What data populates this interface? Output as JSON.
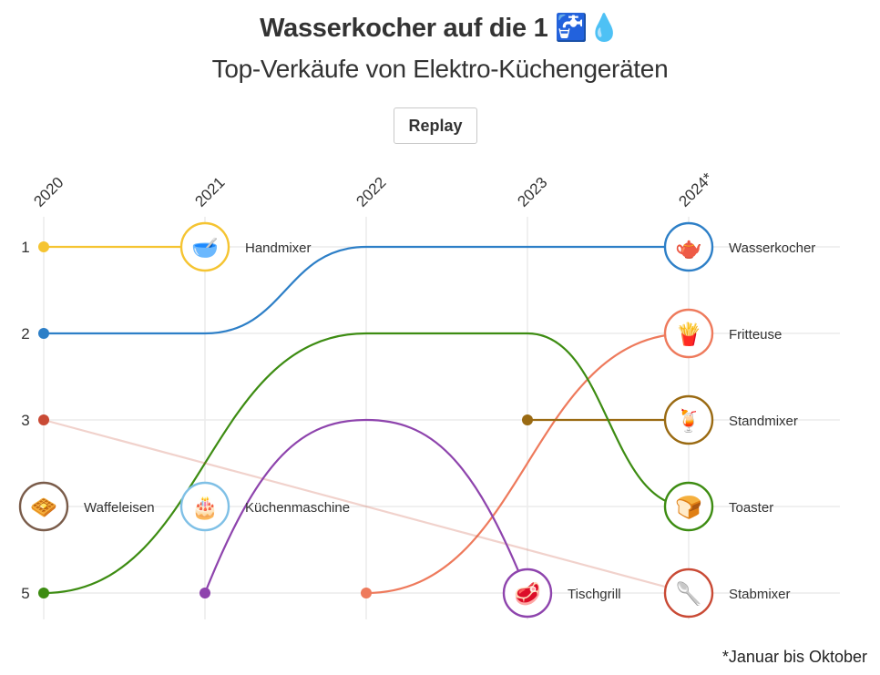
{
  "title": "Wasserkocher auf die 1 🚰💧",
  "subtitle": "Top-Verkäufe von Elektro-Küchengeräten",
  "replay_label": "Replay",
  "footnote": "*Januar bis Oktober",
  "chart_data": {
    "type": "bump",
    "title": "Wasserkocher auf die 1 🚰💧",
    "subtitle": "Top-Verkäufe von Elektro-Küchengeräten",
    "x": [
      "2020",
      "2021",
      "2022",
      "2023",
      "2024*"
    ],
    "y_ticks": [
      "1",
      "2",
      "3",
      "5"
    ],
    "ylim": [
      1,
      5
    ],
    "grid": true,
    "series": [
      {
        "name": "Handmixer",
        "color": "#f5c431",
        "icon": "hand-mixer-icon",
        "ranks": [
          1,
          1,
          null,
          null,
          null
        ]
      },
      {
        "name": "Wasserkocher",
        "color": "#2d7fc7",
        "icon": "kettle-icon",
        "ranks": [
          2,
          2,
          1,
          1,
          1
        ]
      },
      {
        "name": "Fritteuse",
        "color": "#ee7a5c",
        "icon": "air-fryer-icon",
        "ranks": [
          null,
          null,
          5,
          null,
          2
        ]
      },
      {
        "name": "Standmixer",
        "color": "#9a6a12",
        "icon": "blender-icon",
        "ranks": [
          null,
          null,
          null,
          3,
          3
        ]
      },
      {
        "name": "Toaster",
        "color": "#3d8c12",
        "icon": "toaster-icon",
        "ranks": [
          5,
          null,
          2,
          2,
          4
        ]
      },
      {
        "name": "Stabmixer",
        "color": "#c94a35",
        "icon": "immersion-blender-icon",
        "ranks": [
          3,
          null,
          null,
          null,
          5
        ]
      },
      {
        "name": "Tischgrill",
        "color": "#8e44ad",
        "icon": "table-grill-icon",
        "ranks": [
          null,
          5,
          3,
          5,
          null
        ]
      },
      {
        "name": "Waffeleisen",
        "color": "#7a5c4a",
        "icon": "waffle-iron-icon",
        "ranks": [
          4,
          null,
          null,
          null,
          null
        ]
      },
      {
        "name": "Küchenmaschine",
        "color": "#7fc0e6",
        "icon": "stand-mixer-icon",
        "ranks": [
          null,
          4,
          null,
          null,
          null
        ]
      }
    ]
  }
}
